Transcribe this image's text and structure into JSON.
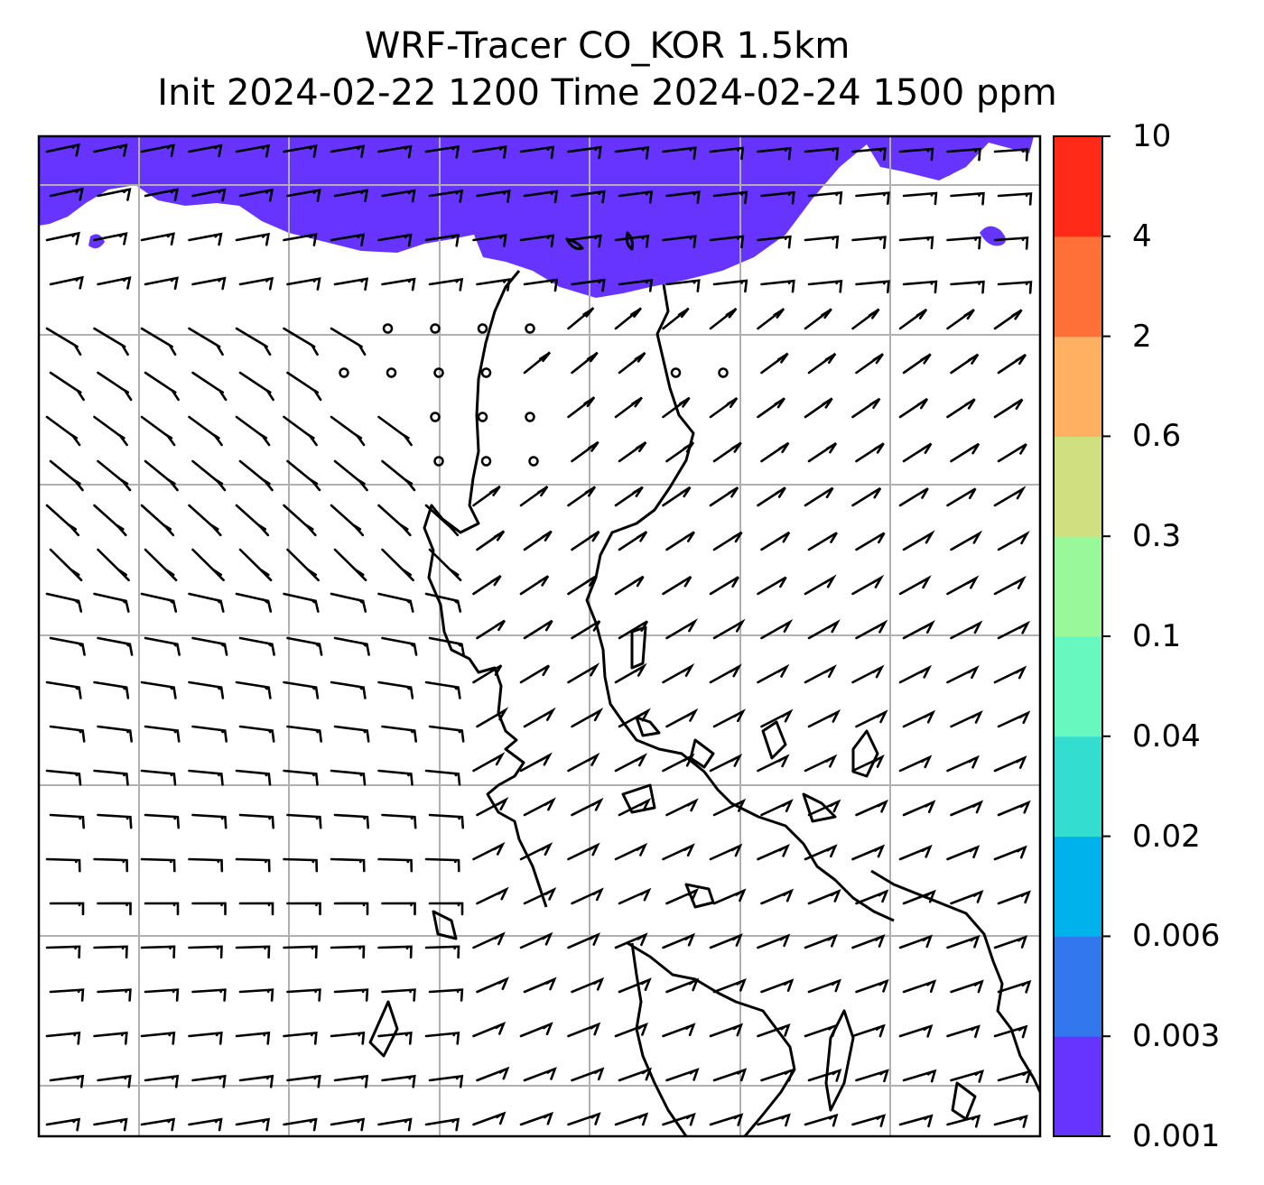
{
  "title": {
    "line1": "WRF-Tracer CO_KOR 1.5km",
    "line2": "Init 2024-02-22 1200 Time 2024-02-24 1500 ppm"
  },
  "colorbar": {
    "levels": [
      "0.001",
      "0.003",
      "0.006",
      "0.02",
      "0.04",
      "0.1",
      "0.3",
      "0.6",
      "2",
      "4",
      "10"
    ],
    "colors": [
      "#6633ff",
      "#3377ee",
      "#00b2ec",
      "#33ddd0",
      "#66f8be",
      "#99f899",
      "#d0e080",
      "#ffb060",
      "#ff7038",
      "#ff2a18"
    ]
  },
  "map": {
    "tracer_fill_color": "#6633ff",
    "coastline_color": "#000000",
    "gridline_color": "#b0b0b0"
  }
}
